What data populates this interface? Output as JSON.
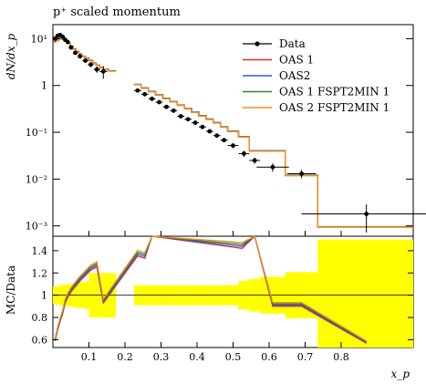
{
  "chart_data": {
    "type": "line",
    "title": "p⁺ scaled momentum",
    "main": {
      "ylabel": "dN/dx_p",
      "yscale": "log",
      "ylim": [
        0.0006,
        20
      ],
      "y_tick_labels": [
        {
          "value": 10,
          "label": "10¹"
        },
        {
          "value": 1,
          "label": "1"
        },
        {
          "value": 0.1,
          "label": "10⁻¹"
        },
        {
          "value": 0.01,
          "label": "10⁻²"
        },
        {
          "value": 0.001,
          "label": "10⁻³"
        }
      ]
    },
    "ratio": {
      "ylabel": "MC/Data",
      "ylim": [
        0.53,
        1.53
      ],
      "y_ticks": [
        0.6,
        0.8,
        1,
        1.2,
        1.4
      ],
      "y_tick_labels": [
        "0.6",
        "0.8",
        "1",
        "1.2",
        "1.4"
      ]
    },
    "xlabel": "x_p",
    "xlim": [
      0.0,
      1.0
    ],
    "x_ticks": [
      0.1,
      0.2,
      0.3,
      0.4,
      0.5,
      0.6,
      0.7,
      0.8
    ],
    "x_tick_labels": [
      "0.1",
      "0.2",
      "0.3",
      "0.4",
      "0.5",
      "0.6",
      "0.7",
      "0.8"
    ],
    "legend_position": "top-right",
    "data": {
      "name": "Data",
      "color": "#000000",
      "x": [
        0.006,
        0.013,
        0.02,
        0.027,
        0.034,
        0.041,
        0.05,
        0.062,
        0.075,
        0.09,
        0.105,
        0.122,
        0.14,
        0.235,
        0.255,
        0.275,
        0.295,
        0.315,
        0.335,
        0.355,
        0.375,
        0.395,
        0.415,
        0.435,
        0.455,
        0.475,
        0.5,
        0.53,
        0.56,
        0.61,
        0.69,
        0.87
      ],
      "y": [
        10.0,
        11.5,
        12.0,
        11.0,
        9.5,
        8.5,
        6.5,
        5.0,
        4.2,
        3.4,
        2.8,
        2.2,
        2.0,
        0.78,
        0.65,
        0.52,
        0.44,
        0.35,
        0.29,
        0.22,
        0.19,
        0.16,
        0.13,
        0.105,
        0.085,
        0.068,
        0.052,
        0.035,
        0.025,
        0.018,
        0.013,
        0.0018
      ],
      "yerr_rel": [
        0.1,
        0.08,
        0.08,
        0.08,
        0.08,
        0.08,
        0.08,
        0.08,
        0.1,
        0.1,
        0.12,
        0.15,
        0.3,
        0.08,
        0.08,
        0.08,
        0.08,
        0.08,
        0.08,
        0.08,
        0.08,
        0.08,
        0.08,
        0.1,
        0.1,
        0.1,
        0.12,
        0.15,
        0.15,
        0.2,
        0.2,
        0.6
      ],
      "xerr": [
        0.003,
        0.003,
        0.003,
        0.003,
        0.003,
        0.003,
        0.005,
        0.006,
        0.006,
        0.008,
        0.008,
        0.009,
        0.011,
        0.01,
        0.01,
        0.01,
        0.01,
        0.01,
        0.01,
        0.01,
        0.01,
        0.01,
        0.01,
        0.01,
        0.01,
        0.01,
        0.015,
        0.015,
        0.015,
        0.045,
        0.04,
        0.18
      ]
    },
    "bins": [
      0.0,
      0.008,
      0.016,
      0.024,
      0.032,
      0.04,
      0.048,
      0.056,
      0.064,
      0.072,
      0.08,
      0.09,
      0.1,
      0.11,
      0.12,
      0.13,
      0.14,
      0.155,
      0.175,
      0.215,
      0.225,
      0.245,
      0.265,
      0.285,
      0.305,
      0.325,
      0.345,
      0.365,
      0.385,
      0.405,
      0.425,
      0.445,
      0.465,
      0.485,
      0.515,
      0.545,
      0.575,
      0.645,
      0.735,
      1.0
    ],
    "mc_values": [
      8.5,
      9.2,
      10.0,
      9.8,
      9.0,
      8.0,
      6.9,
      6.0,
      5.3,
      4.7,
      4.2,
      3.8,
      3.4,
      3.0,
      2.7,
      2.4,
      2.2,
      2.05,
      null,
      null,
      1.05,
      0.88,
      0.74,
      0.63,
      0.53,
      0.45,
      0.38,
      0.32,
      0.27,
      0.225,
      0.19,
      0.16,
      0.13,
      0.105,
      0.08,
      0.04,
      0.04,
      0.012,
      0.00095
    ],
    "series": [
      {
        "name": "OAS 1",
        "color": "#ee2222",
        "scale": 1.0
      },
      {
        "name": "OAS2",
        "color": "#3355ee",
        "scale": 1.01
      },
      {
        "name": "OAS 1 FSPT2MIN 1",
        "color": "#228b22",
        "scale": 0.995
      },
      {
        "name": "OAS 2 FSPT2MIN 1",
        "color": "#ff8c1a",
        "scale": 0.985
      }
    ],
    "ratio_series": {
      "x": [
        0.006,
        0.013,
        0.02,
        0.027,
        0.034,
        0.041,
        0.05,
        0.062,
        0.075,
        0.09,
        0.105,
        0.122,
        0.14,
        0.235,
        0.255,
        0.275,
        0.525,
        0.56,
        0.61,
        0.69,
        0.87
      ],
      "values": [
        0.6,
        0.7,
        0.78,
        0.85,
        0.95,
        1.0,
        1.05,
        1.1,
        1.15,
        1.2,
        1.25,
        1.28,
        0.95,
        1.38,
        1.36,
        1.6,
        1.45,
        1.6,
        0.92,
        0.92,
        0.58
      ]
    },
    "uncertainty_band_color": "#ffff00"
  }
}
